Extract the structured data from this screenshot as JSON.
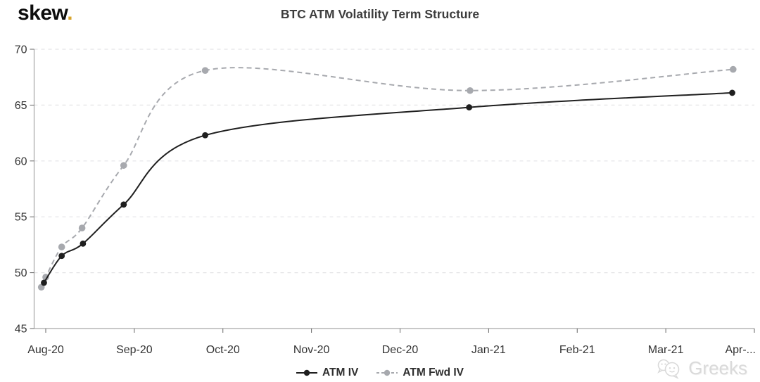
{
  "logo": {
    "text": "skew",
    "dot": ".",
    "dot_color": "#d7a42c"
  },
  "title": "BTC ATM Volatility Term Structure",
  "watermark": {
    "text": "Greeks",
    "icon": "wechat-icon"
  },
  "legend": [
    {
      "label": "ATM IV",
      "color": "#1f1f1f",
      "dashed": false
    },
    {
      "label": "ATM Fwd IV",
      "color": "#a7a9ae",
      "dashed": true
    }
  ],
  "chart_data": {
    "type": "line",
    "title": "BTC ATM Volatility Term Structure",
    "x_unit": "months (0 = Aug-20 tick)",
    "x_tick_labels": [
      "Aug-20",
      "Sep-20",
      "Oct-20",
      "Nov-20",
      "Dec-20",
      "Jan-21",
      "Feb-21",
      "Mar-21",
      "Apr-..."
    ],
    "y_ticks": [
      45,
      50,
      55,
      60,
      65,
      70
    ],
    "ylim": [
      45,
      70
    ],
    "grid": "horizontal-dashed",
    "legend_position": "bottom-center",
    "colors": {
      "atm_iv": "#1f1f1f",
      "atm_fwd_iv": "#a7a9ae",
      "gridline": "#e4e4e6",
      "axis": "#a6a6a6",
      "tick_text": "#333333"
    },
    "series": [
      {
        "name": "ATM IV",
        "style": "solid",
        "color": "#1f1f1f",
        "points": [
          {
            "x": -0.02,
            "y": 49.1
          },
          {
            "x": 0.18,
            "y": 51.5
          },
          {
            "x": 0.42,
            "y": 52.6
          },
          {
            "x": 0.88,
            "y": 56.1
          },
          {
            "x": 1.8,
            "y": 62.3
          },
          {
            "x": 4.78,
            "y": 64.8
          },
          {
            "x": 7.75,
            "y": 66.1
          }
        ]
      },
      {
        "name": "ATM Fwd IV",
        "style": "dashed",
        "color": "#a7a9ae",
        "points": [
          {
            "x": -0.05,
            "y": 48.7
          },
          {
            "x": 0.0,
            "y": 49.6
          },
          {
            "x": 0.18,
            "y": 52.3
          },
          {
            "x": 0.41,
            "y": 54.0
          },
          {
            "x": 0.88,
            "y": 59.6
          },
          {
            "x": 1.8,
            "y": 68.1
          },
          {
            "x": 4.79,
            "y": 66.3
          },
          {
            "x": 7.76,
            "y": 68.2
          }
        ]
      }
    ]
  }
}
